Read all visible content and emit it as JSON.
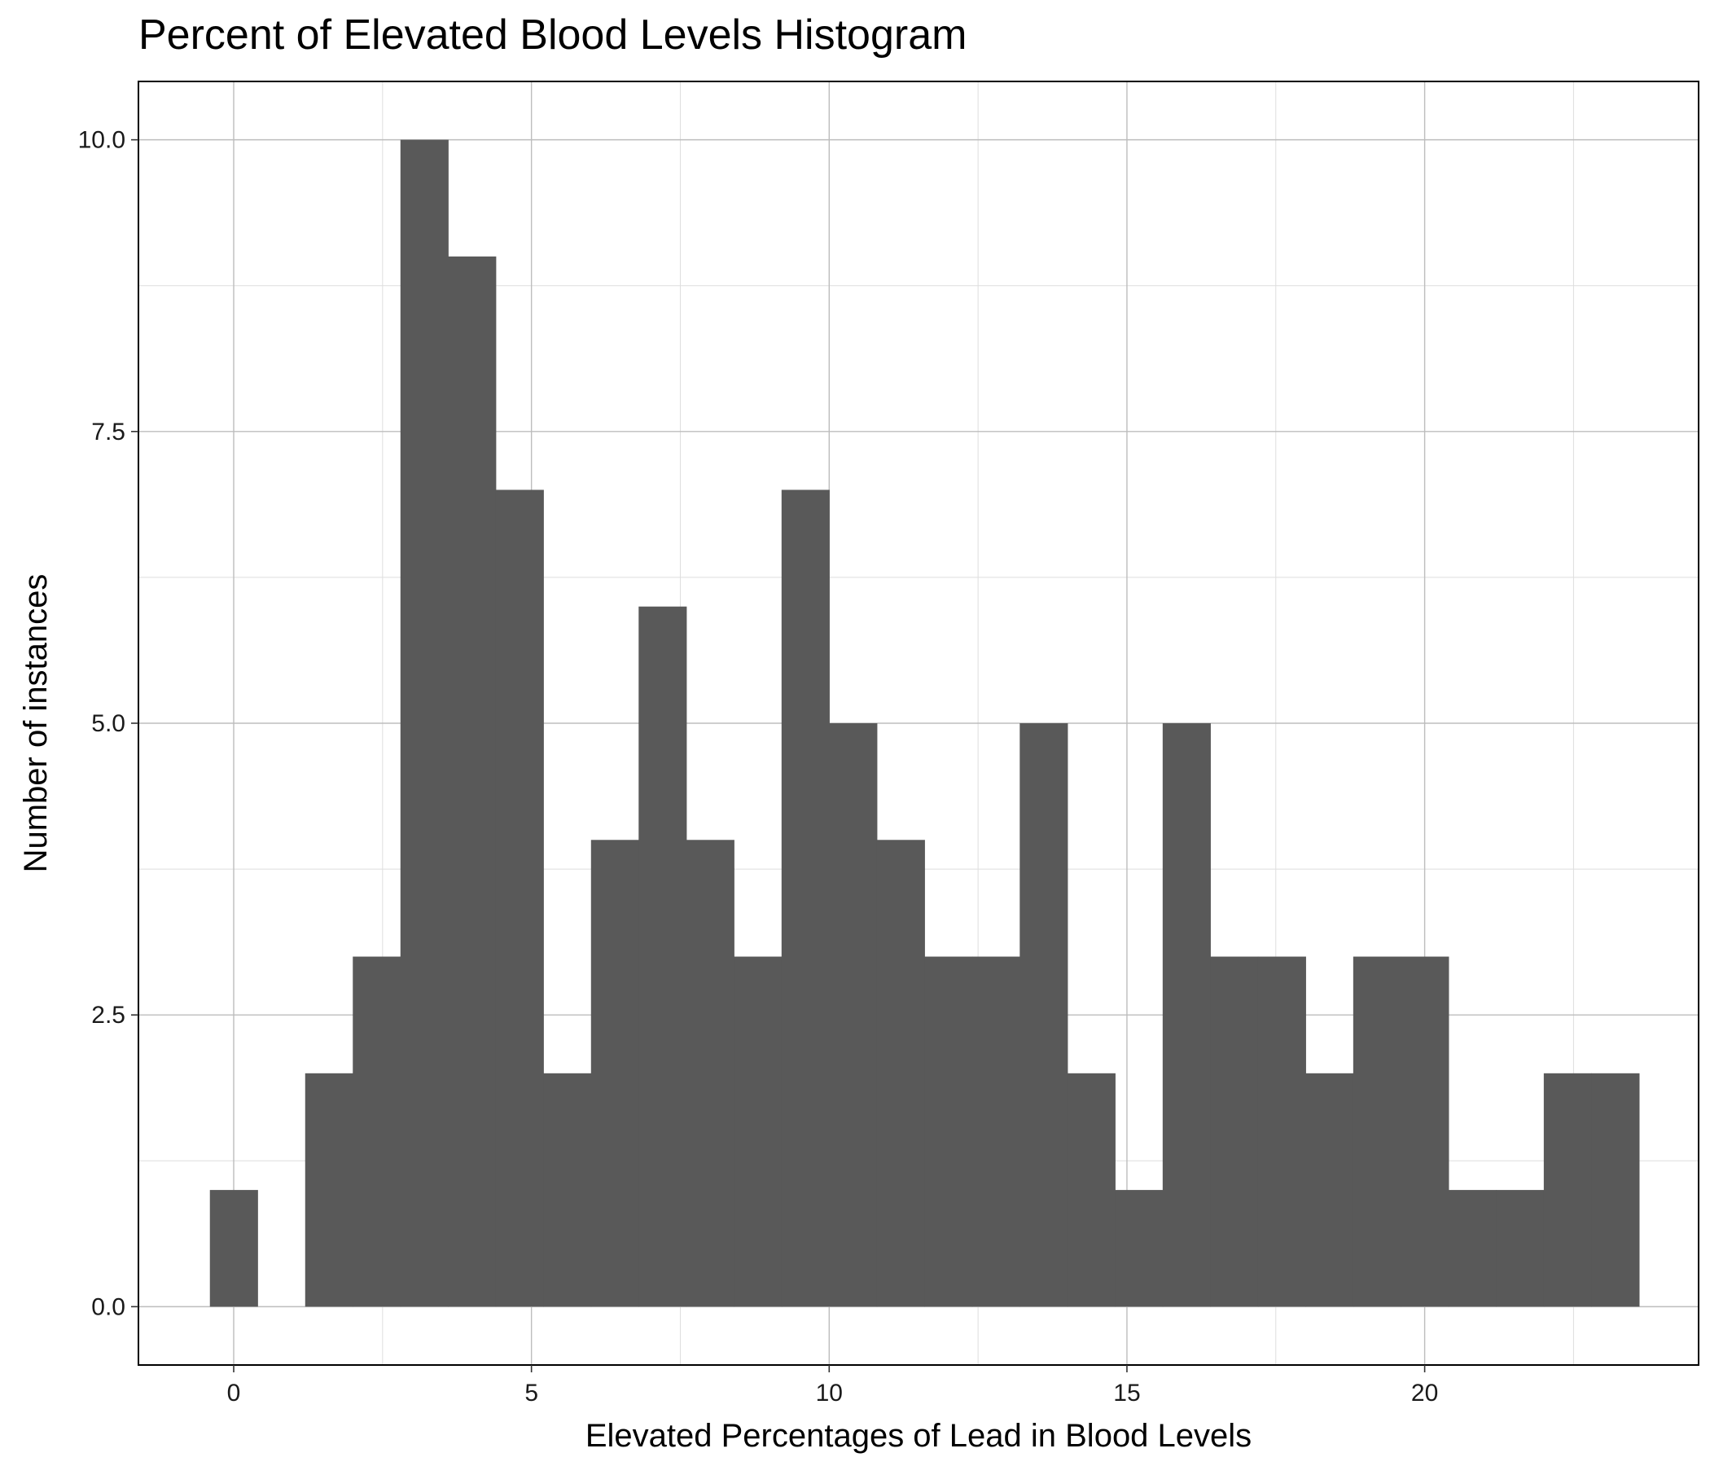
{
  "chart_data": {
    "type": "bar",
    "title": "Percent of Elevated Blood Levels Histogram",
    "xlabel": "Elevated Percentages of Lead in Blood Levels",
    "ylabel": "Number of instances",
    "xlim": [
      -1.6,
      24.6
    ],
    "ylim": [
      -0.5,
      10.5
    ],
    "x_ticks": [
      0,
      5,
      10,
      15,
      20
    ],
    "x_tick_labels": [
      "0",
      "5",
      "10",
      "15",
      "20"
    ],
    "y_ticks": [
      0,
      2.5,
      5,
      7.5,
      10
    ],
    "y_tick_labels": [
      "0.0",
      "2.5",
      "5.0",
      "7.5",
      "10.0"
    ],
    "bin_width": 0.8,
    "bins": [
      {
        "x": 0.0,
        "count": 1
      },
      {
        "x": 0.8,
        "count": 0
      },
      {
        "x": 1.6,
        "count": 2
      },
      {
        "x": 2.4,
        "count": 3
      },
      {
        "x": 3.2,
        "count": 10
      },
      {
        "x": 4.0,
        "count": 9
      },
      {
        "x": 4.8,
        "count": 7
      },
      {
        "x": 5.6,
        "count": 2
      },
      {
        "x": 6.4,
        "count": 4
      },
      {
        "x": 7.2,
        "count": 6
      },
      {
        "x": 8.0,
        "count": 4
      },
      {
        "x": 8.8,
        "count": 3
      },
      {
        "x": 9.6,
        "count": 7
      },
      {
        "x": 10.4,
        "count": 5
      },
      {
        "x": 11.2,
        "count": 4
      },
      {
        "x": 12.0,
        "count": 3
      },
      {
        "x": 12.8,
        "count": 3
      },
      {
        "x": 13.6,
        "count": 5
      },
      {
        "x": 14.4,
        "count": 2
      },
      {
        "x": 15.2,
        "count": 1
      },
      {
        "x": 16.0,
        "count": 5
      },
      {
        "x": 16.8,
        "count": 3
      },
      {
        "x": 17.6,
        "count": 3
      },
      {
        "x": 18.4,
        "count": 2
      },
      {
        "x": 19.2,
        "count": 3
      },
      {
        "x": 20.0,
        "count": 3
      },
      {
        "x": 20.8,
        "count": 1
      },
      {
        "x": 21.6,
        "count": 1
      },
      {
        "x": 22.4,
        "count": 2
      },
      {
        "x": 23.2,
        "count": 2
      }
    ],
    "bar_color": "#595959",
    "panel_border_color": "#000000",
    "grid": true,
    "legend": "none"
  }
}
